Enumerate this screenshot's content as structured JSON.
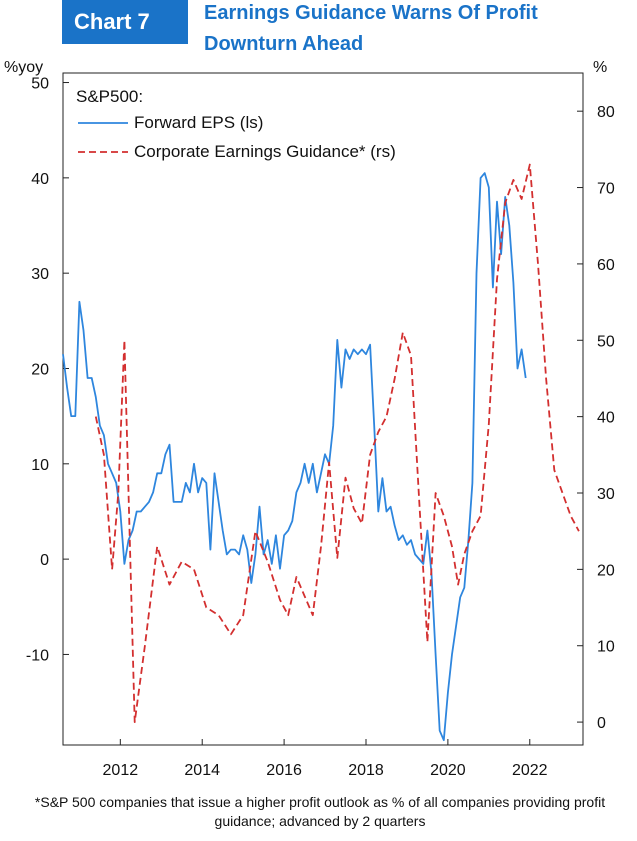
{
  "badge": "Chart 7",
  "title_lines": [
    "Earnings Guidance Warns Of Profit",
    "Downturn Ahead"
  ],
  "footnote": "*S&P 500 companies that issue a higher profit outlook as % of all companies providing profit guidance; advanced by 2 quarters",
  "chart_data": {
    "type": "line",
    "legend_title": "S&P500:",
    "legend_position": "top-left",
    "y_left": {
      "unit": "%yoy",
      "range": [
        -19.5,
        51
      ],
      "ticks": [
        -10,
        0,
        10,
        20,
        30,
        40,
        50
      ]
    },
    "y_right": {
      "unit": "%",
      "range": [
        -3,
        85
      ],
      "ticks": [
        0,
        10,
        20,
        30,
        40,
        50,
        60,
        70,
        80
      ]
    },
    "x_range": [
      2010.6,
      2023.3
    ],
    "x_ticks": [
      "2012",
      "2014",
      "2016",
      "2018",
      "2020",
      "2022"
    ],
    "grid": false,
    "colors": {
      "eps": "#2e86de",
      "guidance": "#d32f2f",
      "title": "#1a73c8"
    },
    "series": [
      {
        "name": "Forward EPS (ls)",
        "axis": "left",
        "style": "solid",
        "points": [
          [
            2010.6,
            21.5
          ],
          [
            2010.7,
            18
          ],
          [
            2010.8,
            15
          ],
          [
            2010.9,
            15
          ],
          [
            2011.0,
            27
          ],
          [
            2011.1,
            24
          ],
          [
            2011.2,
            19
          ],
          [
            2011.3,
            19
          ],
          [
            2011.4,
            17
          ],
          [
            2011.5,
            14
          ],
          [
            2011.6,
            13
          ],
          [
            2011.7,
            10
          ],
          [
            2011.8,
            9
          ],
          [
            2011.9,
            8
          ],
          [
            2012.0,
            5
          ],
          [
            2012.1,
            -0.5
          ],
          [
            2012.2,
            2
          ],
          [
            2012.3,
            3
          ],
          [
            2012.4,
            5
          ],
          [
            2012.5,
            5
          ],
          [
            2012.6,
            5.5
          ],
          [
            2012.7,
            6
          ],
          [
            2012.8,
            7
          ],
          [
            2012.9,
            9
          ],
          [
            2013.0,
            9
          ],
          [
            2013.1,
            11
          ],
          [
            2013.2,
            12
          ],
          [
            2013.3,
            6
          ],
          [
            2013.4,
            6
          ],
          [
            2013.5,
            6
          ],
          [
            2013.6,
            8
          ],
          [
            2013.7,
            7
          ],
          [
            2013.8,
            10
          ],
          [
            2013.9,
            7
          ],
          [
            2014.0,
            8.5
          ],
          [
            2014.1,
            8
          ],
          [
            2014.2,
            1
          ],
          [
            2014.3,
            9
          ],
          [
            2014.4,
            6
          ],
          [
            2014.5,
            3
          ],
          [
            2014.6,
            0.5
          ],
          [
            2014.7,
            1
          ],
          [
            2014.8,
            1
          ],
          [
            2014.9,
            0.5
          ],
          [
            2015.0,
            2.5
          ],
          [
            2015.1,
            1
          ],
          [
            2015.2,
            -2.5
          ],
          [
            2015.3,
            0.5
          ],
          [
            2015.4,
            5.5
          ],
          [
            2015.5,
            0.5
          ],
          [
            2015.6,
            2
          ],
          [
            2015.7,
            -0.5
          ],
          [
            2015.8,
            2.5
          ],
          [
            2015.9,
            -1
          ],
          [
            2016.0,
            2.5
          ],
          [
            2016.1,
            3
          ],
          [
            2016.2,
            4
          ],
          [
            2016.3,
            7
          ],
          [
            2016.4,
            8
          ],
          [
            2016.5,
            10
          ],
          [
            2016.6,
            8
          ],
          [
            2016.7,
            10
          ],
          [
            2016.8,
            7
          ],
          [
            2016.9,
            9
          ],
          [
            2017.0,
            11
          ],
          [
            2017.1,
            10
          ],
          [
            2017.2,
            14
          ],
          [
            2017.3,
            23
          ],
          [
            2017.4,
            18
          ],
          [
            2017.5,
            22
          ],
          [
            2017.6,
            21
          ],
          [
            2017.7,
            22
          ],
          [
            2017.8,
            21.5
          ],
          [
            2017.9,
            22
          ],
          [
            2018.0,
            21.5
          ],
          [
            2018.1,
            22.5
          ],
          [
            2018.2,
            14
          ],
          [
            2018.3,
            5
          ],
          [
            2018.4,
            8.5
          ],
          [
            2018.5,
            5
          ],
          [
            2018.6,
            5.5
          ],
          [
            2018.7,
            3.5
          ],
          [
            2018.8,
            2
          ],
          [
            2018.9,
            2.5
          ],
          [
            2019.0,
            1.5
          ],
          [
            2019.1,
            2
          ],
          [
            2019.2,
            0.5
          ],
          [
            2019.3,
            0
          ],
          [
            2019.4,
            -0.5
          ],
          [
            2019.5,
            3
          ],
          [
            2019.6,
            -1.5
          ],
          [
            2019.7,
            -10
          ],
          [
            2019.8,
            -18
          ],
          [
            2019.9,
            -19
          ],
          [
            2020.0,
            -14
          ],
          [
            2020.1,
            -10
          ],
          [
            2020.2,
            -7
          ],
          [
            2020.3,
            -4
          ],
          [
            2020.4,
            -3
          ],
          [
            2020.5,
            2
          ],
          [
            2020.6,
            8
          ],
          [
            2020.7,
            30
          ],
          [
            2020.8,
            40
          ],
          [
            2020.9,
            40.5
          ],
          [
            2021.0,
            39
          ],
          [
            2021.1,
            28.5
          ],
          [
            2021.2,
            37.5
          ],
          [
            2021.3,
            32
          ],
          [
            2021.4,
            38
          ],
          [
            2021.5,
            35
          ],
          [
            2021.6,
            29
          ],
          [
            2021.7,
            20
          ],
          [
            2021.8,
            22
          ],
          [
            2021.9,
            19
          ]
        ]
      },
      {
        "name": "Corporate Earnings Guidance* (rs)",
        "axis": "right",
        "style": "dashed",
        "points": [
          [
            2011.4,
            40
          ],
          [
            2011.6,
            35
          ],
          [
            2011.8,
            20
          ],
          [
            2011.95,
            30
          ],
          [
            2012.1,
            50
          ],
          [
            2012.35,
            0
          ],
          [
            2012.6,
            10
          ],
          [
            2012.9,
            23
          ],
          [
            2013.2,
            18
          ],
          [
            2013.5,
            21
          ],
          [
            2013.8,
            20
          ],
          [
            2014.1,
            15
          ],
          [
            2014.4,
            14
          ],
          [
            2014.7,
            11.5
          ],
          [
            2015.0,
            14
          ],
          [
            2015.3,
            25
          ],
          [
            2015.6,
            21
          ],
          [
            2015.9,
            16
          ],
          [
            2016.1,
            14
          ],
          [
            2016.3,
            19
          ],
          [
            2016.5,
            16.5
          ],
          [
            2016.7,
            14
          ],
          [
            2016.9,
            23
          ],
          [
            2017.1,
            34
          ],
          [
            2017.3,
            21.5
          ],
          [
            2017.5,
            32
          ],
          [
            2017.7,
            28
          ],
          [
            2017.9,
            26
          ],
          [
            2018.1,
            35
          ],
          [
            2018.3,
            38
          ],
          [
            2018.5,
            40
          ],
          [
            2018.7,
            45
          ],
          [
            2018.9,
            51
          ],
          [
            2019.1,
            48
          ],
          [
            2019.3,
            29
          ],
          [
            2019.5,
            10.5
          ],
          [
            2019.7,
            30
          ],
          [
            2019.9,
            27
          ],
          [
            2020.1,
            23
          ],
          [
            2020.25,
            18
          ],
          [
            2020.4,
            22
          ],
          [
            2020.6,
            25
          ],
          [
            2020.8,
            27
          ],
          [
            2021.0,
            39
          ],
          [
            2021.2,
            58
          ],
          [
            2021.4,
            68
          ],
          [
            2021.6,
            71
          ],
          [
            2021.8,
            68.5
          ],
          [
            2022.0,
            73
          ],
          [
            2022.2,
            60
          ],
          [
            2022.4,
            45
          ],
          [
            2022.6,
            33
          ],
          [
            2022.8,
            30
          ],
          [
            2023.0,
            27
          ],
          [
            2023.2,
            25
          ]
        ]
      }
    ]
  }
}
